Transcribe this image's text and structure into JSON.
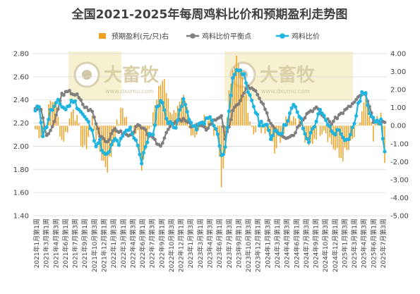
{
  "chart_data": {
    "type": "bar+line",
    "title": "全国2021-2025年每周鸡料比价和预期盈利走势图",
    "legend": [
      {
        "name": "预期盈利(元/只)右",
        "kind": "bar",
        "color": "#f0a020"
      },
      {
        "name": "鸡料比价平衡点",
        "kind": "line",
        "color": "#7f7f7f"
      },
      {
        "name": "鸡料比价",
        "kind": "line",
        "color": "#1fb5e0"
      }
    ],
    "legend_position": "top",
    "left_axis": {
      "min": 1.4,
      "max": 2.8,
      "ticks": [
        "1.40",
        "1.60",
        "1.80",
        "2.00",
        "2.20",
        "2.40",
        "2.60",
        "2.80"
      ]
    },
    "right_axis": {
      "min": -5,
      "max": 4,
      "ticks": [
        "-5.00",
        "-4.00",
        "-3.00",
        "-2.00",
        "-1.00",
        "0.00",
        "1.00",
        "2.00",
        "3.00",
        "4.00"
      ]
    },
    "grid": true,
    "watermark": {
      "brand": "大畜牧",
      "url": "www.dxumu.com"
    },
    "x_labels": [
      "2021年1月第1周",
      "2021年3月第1周",
      "2021年4月第3周",
      "2021年6月第1周",
      "2021年7月第3周",
      "2021年9月第1周",
      "2021年10月第3周",
      "2021年12月第1周",
      "2022年1月第3周",
      "2022年3月第1周",
      "2022年4月第3周",
      "2022年6月第1周",
      "2022年7月第3周",
      "2022年9月第1周",
      "2022年10月第3周",
      "2022年12月第1周",
      "2023年1月第3周",
      "2023年3月第1周",
      "2023年4月第3周",
      "2023年6月第1周",
      "2023年7月第3周",
      "2023年9月第1周",
      "2023年10月第3周",
      "2023年12月第1周",
      "2024年1月第3周",
      "2024年3月第1周",
      "2024年4月第3周",
      "2024年6月第1周",
      "2024年7月第3周",
      "2024年9月第1周",
      "2024年10月第3周",
      "2024年12月第1周",
      "2025年1月第3周",
      "2025年3月第1周",
      "2025年4月第3周",
      "2025年6月第1周",
      "2025年7月第3周"
    ],
    "week_count": 185,
    "balance_series_anchors": [
      [
        0,
        2.33
      ],
      [
        3,
        2.32
      ],
      [
        6,
        2.08
      ],
      [
        10,
        2.2
      ],
      [
        14,
        2.45
      ],
      [
        18,
        2.47
      ],
      [
        22,
        2.44
      ],
      [
        26,
        2.34
      ],
      [
        30,
        2.3
      ],
      [
        34,
        2.1
      ],
      [
        38,
        2.04
      ],
      [
        42,
        2.15
      ],
      [
        46,
        2.11
      ],
      [
        50,
        2.09
      ],
      [
        54,
        2.18
      ],
      [
        58,
        2.13
      ],
      [
        62,
        2.06
      ],
      [
        66,
        2.0
      ],
      [
        70,
        2.16
      ],
      [
        74,
        2.21
      ],
      [
        78,
        2.23
      ],
      [
        82,
        2.18
      ],
      [
        86,
        2.18
      ],
      [
        90,
        2.15
      ],
      [
        94,
        2.22
      ],
      [
        98,
        2.27
      ],
      [
        100,
        2.05
      ],
      [
        104,
        2.3
      ],
      [
        108,
        2.4
      ],
      [
        112,
        2.52
      ],
      [
        116,
        2.47
      ],
      [
        120,
        2.35
      ],
      [
        124,
        2.2
      ],
      [
        128,
        2.12
      ],
      [
        132,
        2.08
      ],
      [
        136,
        2.1
      ],
      [
        140,
        2.22
      ],
      [
        144,
        2.3
      ],
      [
        148,
        2.33
      ],
      [
        152,
        2.25
      ],
      [
        156,
        2.2
      ],
      [
        160,
        2.27
      ],
      [
        164,
        2.32
      ],
      [
        168,
        2.38
      ],
      [
        172,
        2.45
      ],
      [
        174,
        2.44
      ],
      [
        178,
        2.22
      ],
      [
        181,
        2.2
      ],
      [
        184,
        2.2
      ]
    ],
    "ratio_series_anchors": [
      [
        0,
        2.3
      ],
      [
        2,
        2.35
      ],
      [
        4,
        2.1
      ],
      [
        6,
        2.18
      ],
      [
        8,
        2.3
      ],
      [
        12,
        2.38
      ],
      [
        16,
        2.32
      ],
      [
        20,
        2.4
      ],
      [
        24,
        2.3
      ],
      [
        28,
        2.2
      ],
      [
        30,
        2.12
      ],
      [
        32,
        2.02
      ],
      [
        34,
        2.04
      ],
      [
        36,
        1.93
      ],
      [
        38,
        1.92
      ],
      [
        40,
        2.0
      ],
      [
        42,
        2.06
      ],
      [
        44,
        2.02
      ],
      [
        48,
        2.13
      ],
      [
        50,
        2.15
      ],
      [
        54,
        2.02
      ],
      [
        56,
        1.85
      ],
      [
        58,
        2.0
      ],
      [
        60,
        2.1
      ],
      [
        62,
        2.08
      ],
      [
        64,
        2.33
      ],
      [
        66,
        2.4
      ],
      [
        68,
        2.32
      ],
      [
        70,
        2.2
      ],
      [
        74,
        2.18
      ],
      [
        78,
        2.4
      ],
      [
        80,
        2.3
      ],
      [
        82,
        2.2
      ],
      [
        84,
        2.15
      ],
      [
        88,
        2.2
      ],
      [
        92,
        2.25
      ],
      [
        94,
        2.18
      ],
      [
        96,
        2.1
      ],
      [
        98,
        1.9
      ],
      [
        100,
        2.0
      ],
      [
        102,
        2.3
      ],
      [
        104,
        2.6
      ],
      [
        106,
        2.65
      ],
      [
        108,
        2.68
      ],
      [
        110,
        2.6
      ],
      [
        112,
        2.45
      ],
      [
        114,
        2.4
      ],
      [
        116,
        2.3
      ],
      [
        118,
        2.2
      ],
      [
        120,
        2.2
      ],
      [
        122,
        2.18
      ],
      [
        124,
        2.05
      ],
      [
        126,
        2.15
      ],
      [
        128,
        2.12
      ],
      [
        130,
        2.13
      ],
      [
        132,
        2.2
      ],
      [
        134,
        2.28
      ],
      [
        136,
        2.35
      ],
      [
        138,
        2.3
      ],
      [
        140,
        2.22
      ],
      [
        142,
        2.1
      ],
      [
        144,
        2.05
      ],
      [
        146,
        2.15
      ],
      [
        148,
        2.22
      ],
      [
        150,
        2.3
      ],
      [
        152,
        2.25
      ],
      [
        154,
        2.2
      ],
      [
        156,
        2.12
      ],
      [
        158,
        2.12
      ],
      [
        160,
        2.14
      ],
      [
        164,
        2.05
      ],
      [
        166,
        2.1
      ],
      [
        168,
        2.2
      ],
      [
        170,
        2.35
      ],
      [
        172,
        2.46
      ],
      [
        174,
        2.44
      ],
      [
        176,
        2.3
      ],
      [
        178,
        2.26
      ],
      [
        180,
        2.2
      ],
      [
        182,
        2.22
      ],
      [
        184,
        1.95
      ]
    ],
    "profit_series_anchors": [
      [
        0,
        -0.2
      ],
      [
        4,
        -0.5
      ],
      [
        8,
        1.3
      ],
      [
        10,
        1.5
      ],
      [
        14,
        -0.8
      ],
      [
        16,
        -0.5
      ],
      [
        20,
        1.2
      ],
      [
        24,
        -0.8
      ],
      [
        26,
        -1.5
      ],
      [
        30,
        0.4
      ],
      [
        34,
        -1.4
      ],
      [
        36,
        -2.0
      ],
      [
        38,
        -2.3
      ],
      [
        40,
        -1.6
      ],
      [
        42,
        -0.4
      ],
      [
        46,
        1.0
      ],
      [
        50,
        -0.2
      ],
      [
        54,
        -0.2
      ],
      [
        56,
        -2.1
      ],
      [
        58,
        -1.5
      ],
      [
        60,
        -0.6
      ],
      [
        62,
        0.8
      ],
      [
        64,
        1.5
      ],
      [
        66,
        2.3
      ],
      [
        68,
        2.8
      ],
      [
        70,
        1.3
      ],
      [
        74,
        0.4
      ],
      [
        78,
        1.5
      ],
      [
        80,
        1.0
      ],
      [
        82,
        -0.4
      ],
      [
        86,
        -0.4
      ],
      [
        88,
        0.1
      ],
      [
        92,
        0.5
      ],
      [
        94,
        -0.2
      ],
      [
        96,
        -0.6
      ],
      [
        98,
        -3.5
      ],
      [
        100,
        -1.2
      ],
      [
        102,
        1.6
      ],
      [
        104,
        3.5
      ],
      [
        106,
        3.7
      ],
      [
        108,
        2.8
      ],
      [
        110,
        1.9
      ],
      [
        112,
        1.0
      ],
      [
        116,
        -0.4
      ],
      [
        120,
        0.0
      ],
      [
        124,
        -0.2
      ],
      [
        126,
        -1.3
      ],
      [
        130,
        -0.4
      ],
      [
        132,
        0.4
      ],
      [
        134,
        0.7
      ],
      [
        138,
        0.4
      ],
      [
        140,
        0.3
      ],
      [
        142,
        -0.8
      ],
      [
        144,
        -1.3
      ],
      [
        146,
        -0.8
      ],
      [
        148,
        -0.4
      ],
      [
        152,
        0.0
      ],
      [
        156,
        -1.0
      ],
      [
        160,
        -1.8
      ],
      [
        164,
        -1.5
      ],
      [
        166,
        -1.2
      ],
      [
        168,
        -0.6
      ],
      [
        170,
        -0.3
      ],
      [
        172,
        0.8
      ],
      [
        174,
        1.4
      ],
      [
        176,
        0.5
      ],
      [
        178,
        -1.0
      ],
      [
        180,
        0.6
      ],
      [
        182,
        0.3
      ],
      [
        184,
        -2.2
      ]
    ]
  }
}
